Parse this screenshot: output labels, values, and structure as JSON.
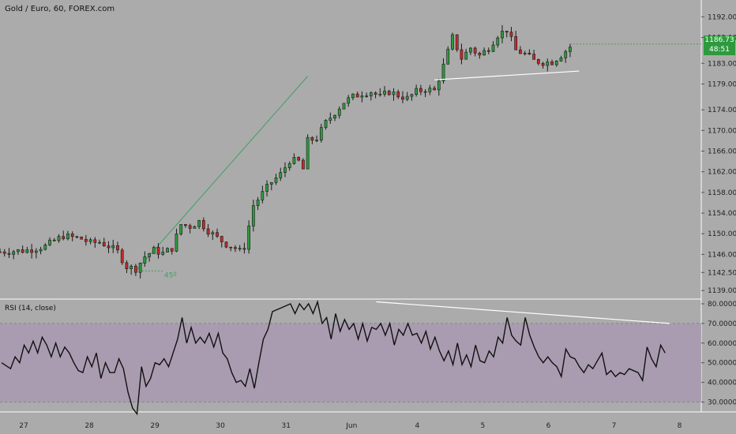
{
  "header": {
    "title": "Gold / Euro, 60, FOREX.com"
  },
  "rsi": {
    "label": "RSI (14, close)"
  },
  "price_badge": {
    "value": "1186.73",
    "countdown": "48:51"
  },
  "colors": {
    "up": "#2e9a3e",
    "down": "#c62a2a",
    "rsi_band": "#a899b0",
    "trendline": "#ffffff",
    "angle_line": "#3f9f63",
    "background": "#ababab"
  },
  "chart_data": [
    {
      "type": "candlestick",
      "title": "Gold / Euro, 60, FOREX.com",
      "y_ticks": [
        1139.0,
        1142.5,
        1146.0,
        1150.0,
        1154.0,
        1158.0,
        1162.0,
        1166.0,
        1170.0,
        1174.0,
        1179.0,
        1183.0,
        1188.0,
        1192.0
      ],
      "y_tick_labels": [
        "1139.00",
        "1142.50",
        "1146.00",
        "1150.00",
        "1154.00",
        "1158.00",
        "1162.00",
        "1166.00",
        "1170.00",
        "1174.00",
        "1179.00",
        "1183.00",
        "1188.00",
        "1192.00"
      ],
      "x_tick_labels": [
        "27",
        "28",
        "29",
        "30",
        "31",
        "Jun",
        "4",
        "5",
        "6",
        "7",
        "8"
      ],
      "ylim": [
        1137.5,
        1194.5
      ],
      "last_price": 1186.73,
      "close_path": [
        [
          0,
          1146.5
        ],
        [
          6,
          1146.8
        ],
        [
          10,
          1147.6
        ],
        [
          14,
          1149.6
        ],
        [
          18,
          1149.0
        ],
        [
          20,
          1148.2
        ],
        [
          22,
          1148.4
        ],
        [
          24,
          1147.6
        ],
        [
          26,
          1146.5
        ],
        [
          28,
          1143.6
        ],
        [
          30,
          1143.2
        ],
        [
          32,
          1145.6
        ],
        [
          34,
          1146.8
        ],
        [
          36,
          1146.2
        ],
        [
          38,
          1147.2
        ],
        [
          40,
          1151.8
        ],
        [
          42,
          1151.4
        ],
        [
          44,
          1152.4
        ],
        [
          46,
          1150.6
        ],
        [
          48,
          1149.2
        ],
        [
          50,
          1148.0
        ],
        [
          52,
          1147.2
        ],
        [
          53,
          1146.6
        ],
        [
          54,
          1147.5
        ],
        [
          56,
          1155.5
        ],
        [
          58,
          1157.8
        ],
        [
          60,
          1160.0
        ],
        [
          62,
          1161.5
        ],
        [
          64,
          1164.2
        ],
        [
          66,
          1164.0
        ],
        [
          67,
          1162.5
        ],
        [
          68,
          1168.0
        ],
        [
          70,
          1168.5
        ],
        [
          72,
          1171.5
        ],
        [
          74,
          1173.5
        ],
        [
          76,
          1175.5
        ],
        [
          78,
          1176.5
        ],
        [
          80,
          1177.2
        ],
        [
          82,
          1177.5
        ],
        [
          84,
          1176.5
        ],
        [
          86,
          1177.5
        ],
        [
          88,
          1176.8
        ],
        [
          90,
          1176.2
        ],
        [
          92,
          1177.5
        ],
        [
          94,
          1178.0
        ],
        [
          96,
          1177.7
        ],
        [
          98,
          1182.5
        ],
        [
          100,
          1188.0
        ],
        [
          102,
          1184.0
        ],
        [
          104,
          1186.0
        ],
        [
          106,
          1184.5
        ],
        [
          108,
          1186.0
        ],
        [
          110,
          1188.5
        ],
        [
          112,
          1189.5
        ],
        [
          114,
          1185.5
        ],
        [
          116,
          1184.8
        ],
        [
          118,
          1183.5
        ],
        [
          120,
          1183.2
        ],
        [
          122,
          1183.3
        ],
        [
          124,
          1184.6
        ],
        [
          126,
          1186.2
        ]
      ],
      "horizontal_trendline": [
        [
          96,
          1179.8
        ],
        [
          128,
          1181.5
        ]
      ],
      "angle_line": {
        "label": "45º",
        "from": [
          30,
          1142.8
        ],
        "to": [
          68,
          1180.5
        ]
      }
    },
    {
      "type": "line",
      "title": "RSI (14, close)",
      "y_ticks": [
        30,
        40,
        50,
        60,
        70,
        80
      ],
      "y_tick_labels": [
        "30.0000",
        "40.0000",
        "50.0000",
        "60.0000",
        "70.0000",
        "80.0000"
      ],
      "ylim": [
        25,
        82
      ],
      "band": [
        30,
        70
      ],
      "points": [
        [
          0,
          50
        ],
        [
          2,
          47
        ],
        [
          3,
          53
        ],
        [
          4,
          50
        ],
        [
          5,
          59
        ],
        [
          6,
          55
        ],
        [
          7,
          61
        ],
        [
          8,
          55
        ],
        [
          9,
          63
        ],
        [
          10,
          59
        ],
        [
          11,
          53
        ],
        [
          12,
          60
        ],
        [
          13,
          53
        ],
        [
          14,
          58
        ],
        [
          15,
          55
        ],
        [
          16,
          50
        ],
        [
          17,
          46
        ],
        [
          18,
          45
        ],
        [
          19,
          53
        ],
        [
          20,
          48
        ],
        [
          21,
          55
        ],
        [
          22,
          42
        ],
        [
          23,
          50
        ],
        [
          24,
          45
        ],
        [
          25,
          45
        ],
        [
          26,
          52
        ],
        [
          27,
          47
        ],
        [
          28,
          35
        ],
        [
          29,
          27
        ],
        [
          30,
          24
        ],
        [
          31,
          48
        ],
        [
          32,
          38
        ],
        [
          33,
          42
        ],
        [
          34,
          50
        ],
        [
          35,
          49
        ],
        [
          36,
          52
        ],
        [
          37,
          48
        ],
        [
          38,
          55
        ],
        [
          39,
          62
        ],
        [
          40,
          73
        ],
        [
          41,
          60
        ],
        [
          42,
          68
        ],
        [
          43,
          60
        ],
        [
          44,
          63
        ],
        [
          45,
          60
        ],
        [
          46,
          65
        ],
        [
          47,
          58
        ],
        [
          48,
          65
        ],
        [
          49,
          55
        ],
        [
          50,
          52
        ],
        [
          51,
          45
        ],
        [
          52,
          40
        ],
        [
          53,
          41
        ],
        [
          54,
          38
        ],
        [
          55,
          47
        ],
        [
          56,
          37
        ],
        [
          57,
          50
        ],
        [
          58,
          62
        ],
        [
          59,
          67
        ],
        [
          60,
          76
        ],
        [
          62,
          78
        ],
        [
          64,
          80
        ],
        [
          65,
          75
        ],
        [
          66,
          80
        ],
        [
          67,
          77
        ],
        [
          68,
          80
        ],
        [
          69,
          75
        ],
        [
          70,
          81
        ],
        [
          71,
          70
        ],
        [
          72,
          73
        ],
        [
          73,
          62
        ],
        [
          74,
          75
        ],
        [
          75,
          66
        ],
        [
          76,
          72
        ],
        [
          77,
          67
        ],
        [
          78,
          70
        ],
        [
          79,
          62
        ],
        [
          80,
          70
        ],
        [
          81,
          61
        ],
        [
          82,
          68
        ],
        [
          83,
          67
        ],
        [
          84,
          70
        ],
        [
          85,
          64
        ],
        [
          86,
          70
        ],
        [
          87,
          59
        ],
        [
          88,
          67
        ],
        [
          89,
          64
        ],
        [
          90,
          70
        ],
        [
          91,
          64
        ],
        [
          92,
          65
        ],
        [
          93,
          60
        ],
        [
          94,
          66
        ],
        [
          95,
          57
        ],
        [
          96,
          63
        ],
        [
          97,
          56
        ],
        [
          98,
          51
        ],
        [
          99,
          56
        ],
        [
          100,
          49
        ],
        [
          101,
          60
        ],
        [
          102,
          49
        ],
        [
          103,
          54
        ],
        [
          104,
          48
        ],
        [
          105,
          59
        ],
        [
          106,
          51
        ],
        [
          107,
          50
        ],
        [
          108,
          56
        ],
        [
          109,
          53
        ],
        [
          110,
          63
        ],
        [
          111,
          60
        ],
        [
          112,
          73
        ],
        [
          113,
          64
        ],
        [
          114,
          61
        ],
        [
          115,
          59
        ],
        [
          116,
          73
        ],
        [
          117,
          64
        ],
        [
          118,
          58
        ],
        [
          119,
          53
        ],
        [
          120,
          50
        ],
        [
          121,
          53
        ],
        [
          122,
          50
        ],
        [
          123,
          48
        ],
        [
          124,
          43
        ],
        [
          125,
          57
        ],
        [
          126,
          53
        ],
        [
          127,
          52
        ],
        [
          128,
          48
        ],
        [
          129,
          45
        ],
        [
          130,
          49
        ],
        [
          131,
          47
        ],
        [
          132,
          51
        ],
        [
          133,
          55
        ],
        [
          134,
          44
        ],
        [
          135,
          46
        ],
        [
          136,
          43
        ],
        [
          137,
          45
        ],
        [
          138,
          44
        ],
        [
          139,
          47
        ],
        [
          140,
          46
        ],
        [
          141,
          45
        ],
        [
          142,
          41
        ],
        [
          143,
          58
        ],
        [
          144,
          52
        ],
        [
          145,
          48
        ],
        [
          146,
          59
        ],
        [
          147,
          55
        ]
      ],
      "trendline": [
        [
          83,
          81
        ],
        [
          148,
          70
        ]
      ]
    }
  ]
}
